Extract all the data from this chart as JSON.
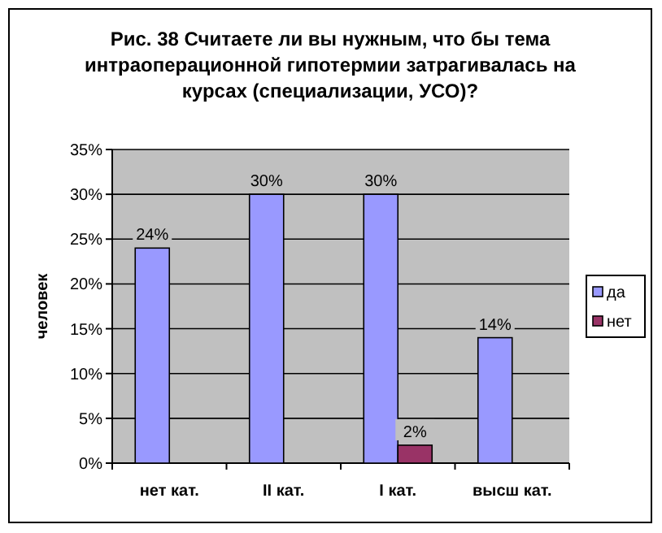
{
  "chart_data": {
    "type": "bar",
    "title": "Рис. 38 Считаете ли вы нужным, что бы тема интраоперационной гипотермии затрагивалась на курсах (специализации, УСО)?",
    "ylabel": "человек",
    "categories": [
      "нет кат.",
      "II кат.",
      "I кат.",
      "высш кат."
    ],
    "series": [
      {
        "name": "да",
        "color": "#9999ff",
        "values": [
          24,
          30,
          30,
          14
        ],
        "value_labels": [
          "24%",
          "30%",
          "30%",
          "14%"
        ]
      },
      {
        "name": "нет",
        "color": "#993366",
        "values": [
          null,
          null,
          2,
          null
        ],
        "value_labels": [
          null,
          null,
          "2%",
          null
        ]
      }
    ],
    "ylim": [
      0,
      35
    ],
    "yticks": [
      {
        "value": 0,
        "label": "0%"
      },
      {
        "value": 5,
        "label": "5%"
      },
      {
        "value": 10,
        "label": "10%"
      },
      {
        "value": 15,
        "label": "15%"
      },
      {
        "value": 20,
        "label": "20%"
      },
      {
        "value": 25,
        "label": "25%"
      },
      {
        "value": 30,
        "label": "30%"
      },
      {
        "value": 35,
        "label": "35%"
      }
    ],
    "grid": "y",
    "legend": "right"
  }
}
